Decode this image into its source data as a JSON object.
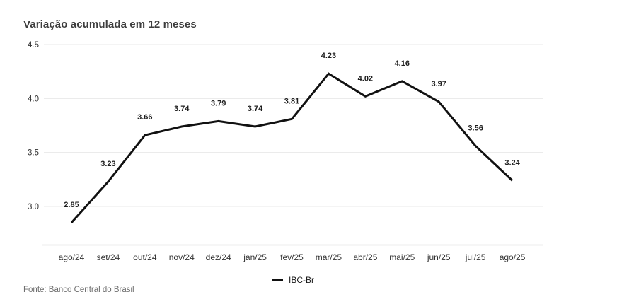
{
  "chart": {
    "title": "Variação acumulada em 12 meses",
    "legend_label": "IBC-Br",
    "source": "Fonte: Banco Central do Brasil"
  },
  "chart_data": {
    "type": "line",
    "title": "Variação acumulada em 12 meses",
    "categories": [
      "ago/24",
      "set/24",
      "out/24",
      "nov/24",
      "dez/24",
      "jan/25",
      "fev/25",
      "mar/25",
      "abr/25",
      "mai/25",
      "jun/25",
      "jul/25",
      "ago/25"
    ],
    "series": [
      {
        "name": "IBC-Br",
        "values": [
          2.85,
          3.23,
          3.66,
          3.74,
          3.79,
          3.74,
          3.81,
          4.23,
          4.02,
          4.16,
          3.97,
          3.56,
          3.24
        ]
      }
    ],
    "yticks": [
      3.0,
      3.5,
      4.0,
      4.5
    ],
    "ylim": [
      2.64,
      4.5
    ],
    "xlabel": "",
    "ylabel": "",
    "grid": "horizontal",
    "data_labels": true,
    "legend_position": "bottom",
    "line_color": "#111111",
    "grid_color": "#e8e8e8",
    "axis_line_color": "#b3b3b3",
    "tick_label_color": "#333333",
    "data_label_color": "#1d1d1d",
    "source": "Fonte: Banco Central do Brasil"
  }
}
